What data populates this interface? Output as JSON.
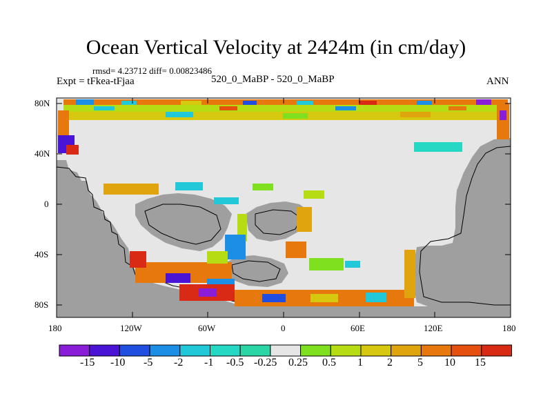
{
  "title": "Ocean Vertical Velocity at 2424m (in cm/day)",
  "stats": "rmsd= 4.23712 diff= 0.00823486",
  "left_label": "Expt = tFkea-tFjaa",
  "center_label": "520_0_MaBP - 520_0_MaBP",
  "right_label": "ANN",
  "lat_ticks": [
    "80N",
    "40N",
    "0",
    "40S",
    "80S"
  ],
  "lon_ticks": [
    "180",
    "120W",
    "60W",
    "0",
    "60E",
    "120E",
    "180"
  ],
  "colorbar": {
    "labels": [
      "-15",
      "-10",
      "-5",
      "-2",
      "-1",
      "-0.5",
      "-0.25",
      "0.25",
      "0.5",
      "1",
      "2",
      "5",
      "10",
      "15"
    ],
    "colors": [
      "#8a1ed8",
      "#4a14d6",
      "#1f4ee0",
      "#1c8ee6",
      "#22c8d8",
      "#24d8c4",
      "#2ad6a6",
      "#e6e6e6",
      "#7ee01e",
      "#b6dc14",
      "#d6c80e",
      "#e0a40e",
      "#e6780e",
      "#e6500e",
      "#d82a14"
    ]
  },
  "colors": {
    "land": "#9f9f9f",
    "neutral": "#e6e6e6"
  }
}
